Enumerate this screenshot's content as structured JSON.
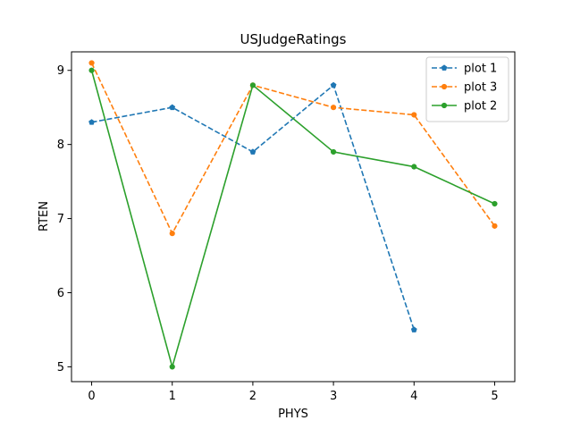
{
  "chart_data": {
    "type": "line",
    "title": "USJudgeRatings",
    "xlabel": "PHYS",
    "ylabel": "RTEN",
    "xlim": [
      -0.25,
      5.25
    ],
    "ylim": [
      4.8,
      9.25
    ],
    "xticks": [
      0,
      1,
      2,
      3,
      4,
      5
    ],
    "yticks": [
      5,
      6,
      7,
      8,
      9
    ],
    "grid": false,
    "legend_position": "upper-right",
    "series": [
      {
        "name": "plot 1",
        "x": [
          0,
          1,
          2,
          3,
          4
        ],
        "values": [
          8.3,
          8.5,
          7.9,
          8.8,
          5.5
        ],
        "color": "#1f77b4",
        "linestyle": "dashed",
        "marker": "pentagon"
      },
      {
        "name": "plot 3",
        "x": [
          0,
          1,
          2,
          3,
          4,
          5
        ],
        "values": [
          9.1,
          6.8,
          8.8,
          8.5,
          8.4,
          6.9
        ],
        "color": "#ff7f0e",
        "linestyle": "dashed",
        "marker": "circle"
      },
      {
        "name": "plot 2",
        "x": [
          0,
          1,
          2,
          3,
          4,
          5
        ],
        "values": [
          9.0,
          5.0,
          8.8,
          7.9,
          7.7,
          7.2
        ],
        "color": "#2ca02c",
        "linestyle": "solid",
        "marker": "circle"
      }
    ]
  }
}
